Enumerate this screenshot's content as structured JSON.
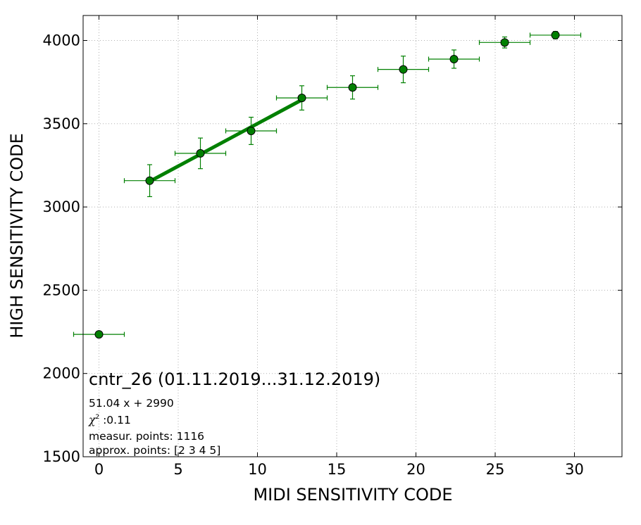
{
  "chart_data": {
    "type": "scatter",
    "xlabel": "MIDI SENSITIVITY CODE",
    "ylabel": "HIGH SENSITIVITY CODE",
    "xlim": [
      -1,
      33
    ],
    "ylim": [
      1500,
      4150
    ],
    "xticks": [
      0,
      5,
      10,
      15,
      20,
      25,
      30
    ],
    "yticks": [
      1500,
      2000,
      2500,
      3000,
      3500,
      4000
    ],
    "grid": true,
    "colors": {
      "series": "#008000",
      "marker_edge": "#000000",
      "grid": "#b0b0b0"
    },
    "points": [
      {
        "x": 0,
        "y": 2235,
        "xerr": 1.6,
        "yerr": 0
      },
      {
        "x": 3.2,
        "y": 3158,
        "xerr": 1.6,
        "yerr": 96
      },
      {
        "x": 6.4,
        "y": 3322,
        "xerr": 1.6,
        "yerr": 92
      },
      {
        "x": 9.6,
        "y": 3457,
        "xerr": 1.6,
        "yerr": 82
      },
      {
        "x": 12.8,
        "y": 3655,
        "xerr": 1.6,
        "yerr": 73
      },
      {
        "x": 16.0,
        "y": 3718,
        "xerr": 1.6,
        "yerr": 70
      },
      {
        "x": 19.2,
        "y": 3826,
        "xerr": 1.6,
        "yerr": 80
      },
      {
        "x": 22.4,
        "y": 3888,
        "xerr": 1.6,
        "yerr": 55
      },
      {
        "x": 25.6,
        "y": 3988,
        "xerr": 1.6,
        "yerr": 33
      },
      {
        "x": 28.8,
        "y": 4032,
        "xerr": 1.6,
        "yerr": 22
      }
    ],
    "fit": {
      "slope": 51.04,
      "intercept": 2990,
      "x_range": [
        3.2,
        12.8
      ]
    },
    "annotations": {
      "title": "cntr_26 (01.11.2019...31.12.2019)",
      "equation": "51.04 x + 2990",
      "chi_symbol": "χ",
      "chi_sup": "2",
      "chi_value": " :0.11",
      "measur": "measur. points: 1116",
      "approx": "approx. points: [2 3 4 5]"
    }
  }
}
